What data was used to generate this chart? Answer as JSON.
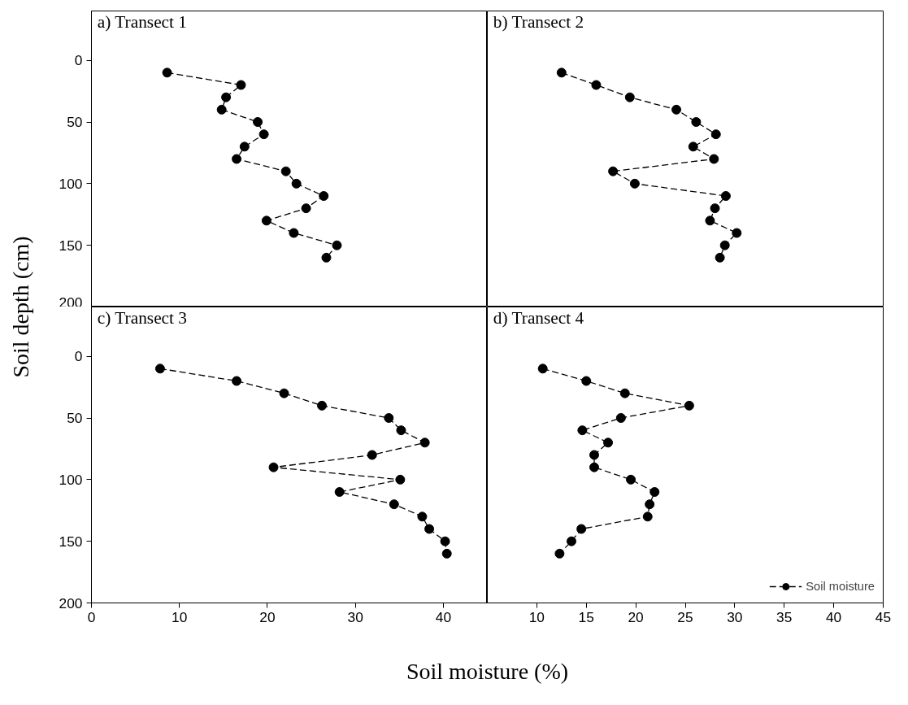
{
  "chart_data": [
    {
      "type": "line",
      "title": "a) Transect 1",
      "ylabel": "Soil depth (cm)",
      "xlim": [
        0,
        45
      ],
      "xticks": [
        0,
        10,
        20,
        30,
        40
      ],
      "ylim": [
        200,
        -40
      ],
      "yticks": [
        0,
        50,
        100,
        150,
        200
      ],
      "tick_labels": "y",
      "grid": false,
      "marker": "circle",
      "line_style": "dashed",
      "series": [
        {
          "color": "#000000",
          "x": [
            8.6,
            17.0,
            15.3,
            14.8,
            18.9,
            19.6,
            17.4,
            16.5,
            22.1,
            23.3,
            26.4,
            24.4,
            19.9,
            23.0,
            27.9,
            26.7
          ],
          "values": [
            10,
            20,
            30,
            40,
            50,
            60,
            70,
            80,
            90,
            100,
            110,
            120,
            130,
            140,
            150,
            160
          ]
        }
      ]
    },
    {
      "type": "line",
      "title": "b) Transect 2",
      "xlim": [
        5,
        45
      ],
      "xticks": [
        10,
        15,
        20,
        25,
        30,
        35,
        40,
        45
      ],
      "ylim": [
        200,
        -40
      ],
      "yticks": [
        0,
        50,
        100,
        150,
        200
      ],
      "tick_labels": false,
      "grid": false,
      "marker": "circle",
      "line_style": "dashed",
      "series": [
        {
          "color": "#000000",
          "x": [
            12.5,
            16.0,
            19.4,
            24.1,
            26.1,
            28.1,
            25.8,
            27.9,
            17.7,
            19.9,
            29.1,
            28.0,
            27.5,
            30.2,
            29.0,
            28.5
          ],
          "values": [
            10,
            20,
            30,
            40,
            50,
            60,
            70,
            80,
            90,
            100,
            110,
            120,
            130,
            140,
            150,
            160
          ]
        }
      ]
    },
    {
      "type": "line",
      "title": "c) Transect 3",
      "xlabel": "Soil moisture (%)",
      "xlim": [
        0,
        45
      ],
      "xticks": [
        0,
        10,
        20,
        30,
        40
      ],
      "ylim": [
        200,
        -40
      ],
      "yticks": [
        0,
        50,
        100,
        150,
        200
      ],
      "grid": false,
      "marker": "circle",
      "line_style": "dashed",
      "series": [
        {
          "color": "#000000",
          "x": [
            7.8,
            16.5,
            21.9,
            26.2,
            33.8,
            35.2,
            37.9,
            31.9,
            20.7,
            35.1,
            28.2,
            34.4,
            37.6,
            38.4,
            40.2,
            40.4
          ],
          "values": [
            10,
            20,
            30,
            40,
            50,
            60,
            70,
            80,
            90,
            100,
            110,
            120,
            130,
            140,
            150,
            160
          ]
        }
      ]
    },
    {
      "type": "line",
      "title": "d) Transect 4",
      "xlim": [
        5,
        45
      ],
      "xticks": [
        10,
        15,
        20,
        25,
        30,
        35,
        40,
        45
      ],
      "ylim": [
        200,
        -40
      ],
      "yticks": [
        0,
        50,
        100,
        150,
        200
      ],
      "tick_labels": "x",
      "grid": false,
      "marker": "circle",
      "line_style": "dashed",
      "legend": "bottom right",
      "series": [
        {
          "name": "Soil moisture",
          "color": "#000000",
          "x": [
            10.6,
            15.0,
            18.9,
            25.4,
            18.5,
            14.6,
            17.2,
            15.8,
            15.8,
            19.5,
            21.9,
            21.4,
            21.2,
            14.5,
            13.5,
            12.3
          ],
          "values": [
            10,
            20,
            30,
            40,
            50,
            60,
            70,
            80,
            90,
            100,
            110,
            120,
            130,
            140,
            150,
            160
          ]
        }
      ]
    }
  ]
}
